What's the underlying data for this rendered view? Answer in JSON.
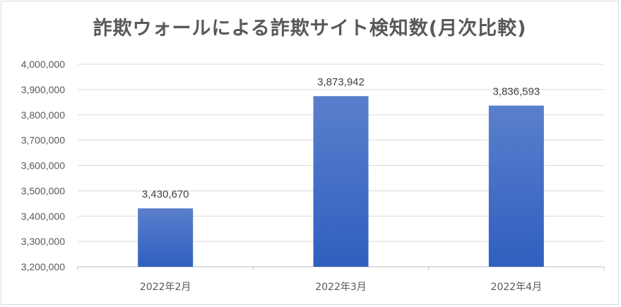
{
  "chart_data": {
    "type": "bar",
    "title": "詐欺ウォールによる詐欺サイト検知数(月次比較)",
    "categories": [
      "2022年2月",
      "2022年3月",
      "2022年4月"
    ],
    "values": [
      3430670,
      3873942,
      3836593
    ],
    "data_labels": [
      "3,430,670",
      "3,873,942",
      "3,836,593"
    ],
    "ylim": [
      3200000,
      4000000
    ],
    "y_step": 100000,
    "y_tick_labels": [
      "3,200,000",
      "3,300,000",
      "3,400,000",
      "3,500,000",
      "3,600,000",
      "3,700,000",
      "3,800,000",
      "3,900,000",
      "4,000,000"
    ],
    "xlabel": "",
    "ylabel": "",
    "grid": true,
    "legend": "none",
    "bar_color_top": "#5b7fcc",
    "bar_color_bottom": "#2f5fbf",
    "grid_color": "#d9d9d9",
    "text_color": "#595959"
  }
}
